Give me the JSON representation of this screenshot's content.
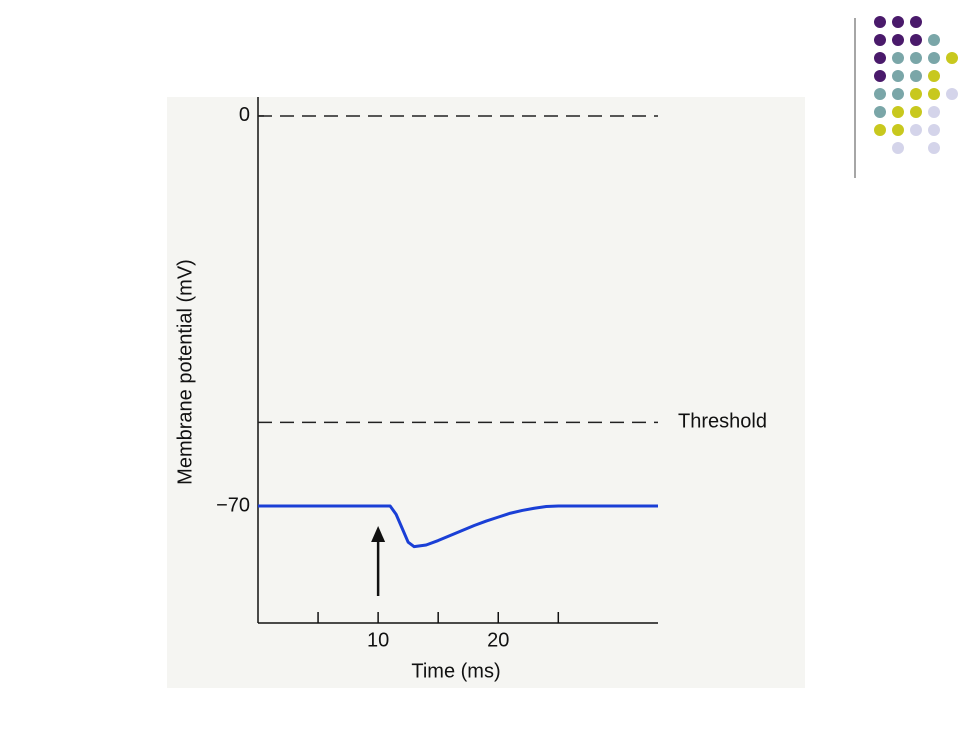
{
  "chart_data": {
    "type": "line",
    "xlabel": "Time (ms)",
    "ylabel": "Membrane potential (mV)",
    "x": [
      0,
      11,
      11.5,
      12,
      12.5,
      13,
      14,
      15,
      16,
      17,
      18,
      19,
      20,
      21,
      22,
      23,
      24,
      25,
      33.3
    ],
    "values": [
      -70,
      -70,
      -71.5,
      -74,
      -76.5,
      -77.3,
      -77,
      -76.2,
      -75.3,
      -74.4,
      -73.5,
      -72.7,
      -72,
      -71.3,
      -70.8,
      -70.4,
      -70.1,
      -70,
      -70
    ],
    "color": "#1a3fd6",
    "xlim": [
      0,
      33.3
    ],
    "ylim": [
      -91,
      3.4
    ],
    "xticks": [
      10,
      20
    ],
    "minor_xticks": [
      5,
      15,
      25
    ],
    "yticks": [
      0,
      {
        "value": -70,
        "label": "−70"
      }
    ],
    "dashed_lines": [
      0,
      {
        "value": -55,
        "label": "Threshold"
      }
    ],
    "arrow_x": 10
  }
}
